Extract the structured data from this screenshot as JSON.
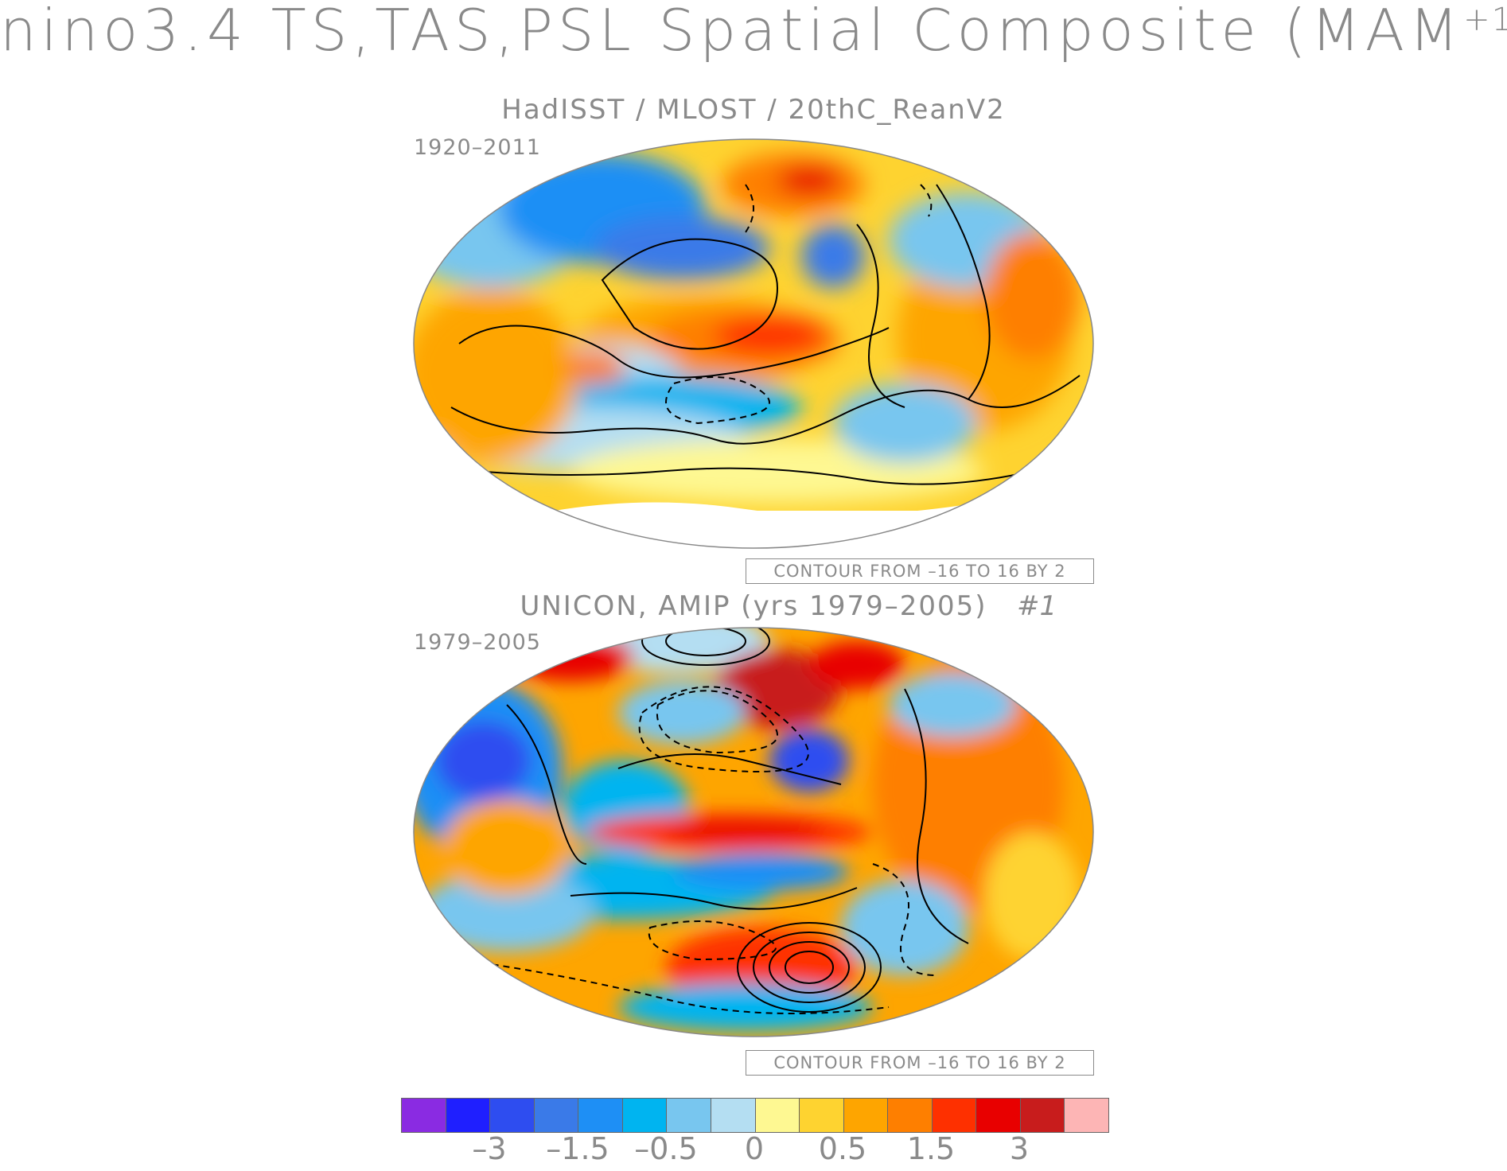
{
  "title": {
    "prefix": "nino3.4 TS,TAS,PSL Spatial Composite (MAM",
    "superscript": "+1",
    "suffix": ")"
  },
  "panels": [
    {
      "subtitle": "HadISST / MLOST / 20thC_ReanV2",
      "period": "1920–2011",
      "contour_note": "CONTOUR FROM –16 TO 16 BY 2",
      "case_number": ""
    },
    {
      "subtitle": "UNICON, AMIP (yrs 1979–2005)",
      "period": "1979–2005",
      "contour_note": "CONTOUR FROM –16 TO 16 BY 2",
      "case_number": "#1"
    }
  ],
  "colorbar": {
    "colors": [
      "#8a2be2",
      "#1f1fff",
      "#2e4df0",
      "#3a7ae8",
      "#1e8ff5",
      "#00b4f0",
      "#78c6ef",
      "#b4def2",
      "#fef892",
      "#fed330",
      "#fea500",
      "#fe7f00",
      "#fe3000",
      "#e80000",
      "#c81c1c",
      "#fdb5b5"
    ],
    "labels": [
      "–3",
      "–1.5",
      "–0.5",
      "0",
      "0.5",
      "1.5",
      "3"
    ]
  }
}
